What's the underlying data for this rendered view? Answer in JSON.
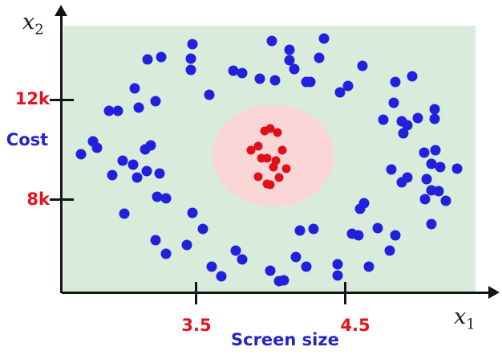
{
  "axes": {
    "x_symbol_base": "x",
    "x_symbol_sub": "1",
    "y_symbol_base": "x",
    "y_symbol_sub": "2",
    "x_title": "Screen size",
    "y_title": "Cost",
    "y_tick_labels": [
      "12k",
      "8k"
    ],
    "x_tick_labels": [
      "3.5",
      "4.5"
    ]
  },
  "colors": {
    "axis": "#141414",
    "red_label": "#e8101c",
    "blue_label": "#2424c8",
    "outer_bg": "#d9ecdc",
    "inner_bg": "#fad6d6",
    "dot_blue": "#2121dd",
    "dot_red": "#e0101a"
  },
  "chart_data": {
    "type": "scatter",
    "title": "",
    "xlabel": "Screen size",
    "ylabel": "Cost",
    "x_axis_symbol": "x1",
    "y_axis_symbol": "x2",
    "xlim": [
      2.6,
      5.4
    ],
    "ylim": [
      4200,
      15000
    ],
    "x_ticks": [
      {
        "label": "3.5",
        "value": 3.5
      },
      {
        "label": "4.5",
        "value": 4.5
      }
    ],
    "y_ticks": [
      {
        "label": "12k",
        "value": 12000
      },
      {
        "label": "8k",
        "value": 8000
      }
    ],
    "grid": false,
    "legend": "none",
    "regions": [
      {
        "name": "outer-region",
        "shape": "plot-background",
        "color": "#d9ecdc"
      },
      {
        "name": "inner-region",
        "shape": "ellipse",
        "color": "#fad6d6",
        "center": [
          4.02,
          9750
        ],
        "rx": 0.41,
        "ry": 2060
      }
    ],
    "series": [
      {
        "name": "outer-cluster",
        "color": "#2121dd",
        "points": [
          [
            3.18,
            13610
          ],
          [
            3.27,
            13710
          ],
          [
            3.48,
            14230
          ],
          [
            3.47,
            13650
          ],
          [
            3.47,
            13190
          ],
          [
            3.75,
            13160
          ],
          [
            3.81,
            13060
          ],
          [
            3.93,
            12840
          ],
          [
            4.03,
            12770
          ],
          [
            4.01,
            14350
          ],
          [
            4.13,
            14000
          ],
          [
            4.13,
            13580
          ],
          [
            4.16,
            13230
          ],
          [
            4.24,
            12710
          ],
          [
            4.27,
            12710
          ],
          [
            4.33,
            13680
          ],
          [
            4.36,
            14450
          ],
          [
            4.62,
            13350
          ],
          [
            4.52,
            12550
          ],
          [
            4.47,
            12290
          ],
          [
            4.84,
            12710
          ],
          [
            4.95,
            12940
          ],
          [
            4.83,
            11870
          ],
          [
            5.1,
            11610
          ],
          [
            4.76,
            11190
          ],
          [
            4.88,
            11130
          ],
          [
            4.92,
            10970
          ],
          [
            4.99,
            11260
          ],
          [
            5.1,
            11230
          ],
          [
            4.89,
            10650
          ],
          [
            5.03,
            9870
          ],
          [
            5.11,
            9970
          ],
          [
            5.08,
            9420
          ],
          [
            5.14,
            9290
          ],
          [
            5.25,
            9230
          ],
          [
            4.81,
            9190
          ],
          [
            4.92,
            8870
          ],
          [
            4.88,
            8680
          ],
          [
            5.05,
            8810
          ],
          [
            5.08,
            8350
          ],
          [
            5.13,
            8320
          ],
          [
            5.04,
            8000
          ],
          [
            5.18,
            7940
          ],
          [
            5.08,
            7000
          ],
          [
            3.09,
            12450
          ],
          [
            3.59,
            12190
          ],
          [
            3.23,
            11940
          ],
          [
            3.12,
            11680
          ],
          [
            2.92,
            11550
          ],
          [
            2.98,
            11550
          ],
          [
            2.81,
            10320
          ],
          [
            2.84,
            10060
          ],
          [
            2.73,
            9810
          ],
          [
            3.16,
            10000
          ],
          [
            3.2,
            10160
          ],
          [
            3.01,
            9550
          ],
          [
            3.08,
            9390
          ],
          [
            2.94,
            8970
          ],
          [
            3.11,
            8870
          ],
          [
            3.17,
            9130
          ],
          [
            3.26,
            9030
          ],
          [
            3.24,
            8100
          ],
          [
            3.3,
            8030
          ],
          [
            3.02,
            7420
          ],
          [
            3.48,
            7450
          ],
          [
            3.55,
            6810
          ],
          [
            3.23,
            6350
          ],
          [
            3.44,
            6160
          ],
          [
            3.3,
            5810
          ],
          [
            3.77,
            5940
          ],
          [
            3.81,
            5580
          ],
          [
            3.61,
            5290
          ],
          [
            3.67,
            4900
          ],
          [
            4.0,
            5130
          ],
          [
            4.06,
            4710
          ],
          [
            4.09,
            4740
          ],
          [
            4.17,
            5680
          ],
          [
            4.24,
            5290
          ],
          [
            4.45,
            5390
          ],
          [
            4.45,
            4940
          ],
          [
            4.55,
            6610
          ],
          [
            4.59,
            6550
          ],
          [
            4.66,
            5290
          ],
          [
            4.2,
            6740
          ],
          [
            4.29,
            6810
          ],
          [
            4.72,
            6840
          ],
          [
            4.84,
            6550
          ],
          [
            4.8,
            5940
          ],
          [
            4.63,
            7840
          ],
          [
            4.6,
            7610
          ]
        ]
      },
      {
        "name": "inner-cluster",
        "color": "#e0101a",
        "points": [
          [
            4.0,
            10840
          ],
          [
            3.96,
            10740
          ],
          [
            4.05,
            10680
          ],
          [
            3.92,
            10130
          ],
          [
            3.87,
            9970
          ],
          [
            4.08,
            9970
          ],
          [
            3.94,
            9650
          ],
          [
            3.98,
            9650
          ],
          [
            4.04,
            9550
          ],
          [
            4.02,
            9290
          ],
          [
            4.11,
            9230
          ],
          [
            3.92,
            8900
          ],
          [
            4.06,
            8870
          ],
          [
            3.98,
            8610
          ],
          [
            4.0,
            8580
          ]
        ]
      }
    ]
  }
}
